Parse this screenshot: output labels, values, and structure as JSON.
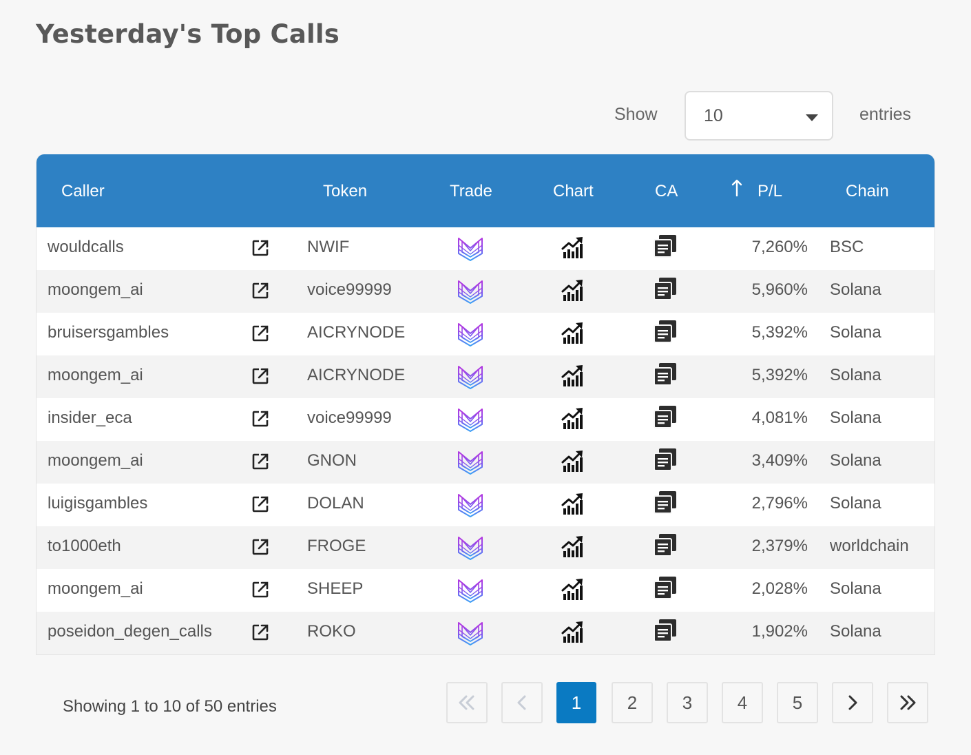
{
  "page": {
    "title": "Yesterday's Top Calls"
  },
  "length_control": {
    "show_label": "Show",
    "selected": "10",
    "entries_label": "entries"
  },
  "table": {
    "headers": {
      "caller": "Caller",
      "token": "Token",
      "trade": "Trade",
      "chart": "Chart",
      "ca": "CA",
      "pl": "P/L",
      "chain": "Chain"
    },
    "sort": {
      "column": "P/L",
      "direction": "descending",
      "icon": "arrow-up-icon"
    },
    "row_icons": {
      "external_link": "external-link-icon",
      "trade": "trade-logo-icon",
      "chart": "chart-icon",
      "ca": "copy-icon"
    },
    "rows": [
      {
        "caller": "wouldcalls",
        "token": "NWIF",
        "pl": "7,260%",
        "chain": "BSC"
      },
      {
        "caller": "moongem_ai",
        "token": "voice99999",
        "pl": "5,960%",
        "chain": "Solana"
      },
      {
        "caller": "bruisersgambles",
        "token": "AICRYNODE",
        "pl": "5,392%",
        "chain": "Solana"
      },
      {
        "caller": "moongem_ai",
        "token": "AICRYNODE",
        "pl": "5,392%",
        "chain": "Solana"
      },
      {
        "caller": "insider_eca",
        "token": "voice99999",
        "pl": "4,081%",
        "chain": "Solana"
      },
      {
        "caller": "moongem_ai",
        "token": "GNON",
        "pl": "3,409%",
        "chain": "Solana"
      },
      {
        "caller": "luigisgambles",
        "token": "DOLAN",
        "pl": "2,796%",
        "chain": "Solana"
      },
      {
        "caller": "to1000eth",
        "token": "FROGE",
        "pl": "2,379%",
        "chain": "worldchain"
      },
      {
        "caller": "moongem_ai",
        "token": "SHEEP",
        "pl": "2,028%",
        "chain": "Solana"
      },
      {
        "caller": "poseidon_degen_calls",
        "token": "ROKO",
        "pl": "1,902%",
        "chain": "Solana"
      }
    ]
  },
  "footer": {
    "info": "Showing 1 to 10 of 50 entries",
    "pagination": {
      "pages": [
        "1",
        "2",
        "3",
        "4",
        "5"
      ],
      "current": "1",
      "icons": [
        "double-chevron-left-icon",
        "chevron-left-icon",
        "chevron-right-icon",
        "double-chevron-right-icon"
      ]
    }
  },
  "colors": {
    "header": "#2e81c4",
    "active_page": "#0a7ac2",
    "background": "#f7f7f7"
  }
}
